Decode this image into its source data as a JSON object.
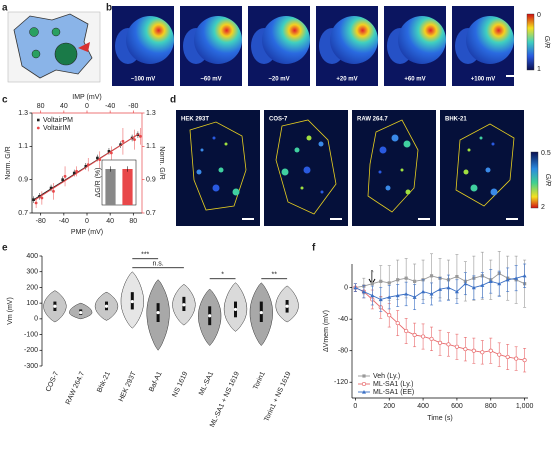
{
  "panel_labels": [
    "a",
    "b",
    "c",
    "d",
    "e",
    "f"
  ],
  "panel_b": {
    "labels": [
      "−100 mV",
      "−60 mV",
      "−20 mV",
      "+20 mV",
      "+60 mV",
      "+100 mV"
    ],
    "colorbar": {
      "title": "G/R",
      "ticks": [
        "0",
        "1"
      ]
    }
  },
  "panel_d": {
    "labels": [
      "HEK 293T",
      "COS-7",
      "RAW 264.7",
      "BHK-21"
    ],
    "colorbar": {
      "title": "G/R",
      "ticks": [
        "0.5",
        "2"
      ]
    }
  },
  "chart_data": [
    {
      "type": "scatter",
      "xlabel": "PMP (mV)",
      "x2label": "IMP (mV)",
      "ylabel": "Norm. G/R",
      "y2label": "Norm. G/R",
      "xlim": [
        -95,
        95
      ],
      "xticks": [
        -80,
        -40,
        0,
        40,
        80
      ],
      "x2lim": [
        95,
        -95
      ],
      "x2ticks": [
        80,
        40,
        0,
        -40,
        -80
      ],
      "ylim": [
        0.7,
        1.3
      ],
      "yticks": [
        0.7,
        0.9,
        1.1,
        1.3
      ],
      "y2lim": [
        0.7,
        1.3
      ],
      "y2ticks": [
        0.7,
        0.9,
        1.1,
        1.3
      ],
      "x": [
        -90,
        -80,
        -60,
        -40,
        -20,
        0,
        20,
        40,
        60,
        80,
        90
      ],
      "series": [
        {
          "name": "VoltairPM",
          "color": "#222222",
          "values": [
            0.78,
            0.8,
            0.85,
            0.9,
            0.94,
            0.98,
            1.03,
            1.07,
            1.11,
            1.15,
            1.17
          ],
          "errors": [
            0.02,
            0.02,
            0.02,
            0.02,
            0.02,
            0.02,
            0.02,
            0.02,
            0.02,
            0.02,
            0.02
          ]
        },
        {
          "name": "VoltairIM",
          "color": "#e8484a",
          "values": [
            0.76,
            0.79,
            0.83,
            0.92,
            0.95,
            0.99,
            1.02,
            1.06,
            1.13,
            1.14,
            1.16
          ],
          "errors": [
            0.03,
            0.04,
            0.05,
            0.06,
            0.03,
            0.04,
            0.05,
            0.04,
            0.08,
            0.06,
            0.05
          ]
        }
      ]
    },
    {
      "type": "bar",
      "ylabel": "ΔG/R (%)",
      "ylim": [
        0,
        25
      ],
      "values": [
        20,
        20
      ],
      "errors": [
        1.5,
        1.5
      ],
      "colors": [
        "#888888",
        "#e8484a"
      ]
    },
    {
      "type": "violin",
      "ylabel": "Vm (mV)",
      "ylim": [
        -300,
        400
      ],
      "yticks": [
        -300,
        -200,
        -100,
        0,
        100,
        200,
        300,
        400
      ],
      "categories": [
        "COS-7",
        "RAW 264.7",
        "Bhk-21",
        "HEK 293T",
        "Baf-A1",
        "NS 1619",
        "ML-SA1",
        "ML-SA1 + NS 1619",
        "Torin1",
        "Torin1 + NS 1619"
      ],
      "colors": [
        "#c8c8c8",
        "#b0b0b0",
        "#c8c8c8",
        "#e6e6e6",
        "#a8a8a8",
        "#dadada",
        "#a8a8a8",
        "#dadada",
        "#a8a8a8",
        "#dadada"
      ],
      "median": [
        80,
        40,
        80,
        110,
        40,
        90,
        20,
        60,
        40,
        80
      ],
      "q1": [
        50,
        25,
        55,
        60,
        -20,
        50,
        -40,
        10,
        -20,
        40
      ],
      "q3": [
        110,
        60,
        110,
        170,
        100,
        140,
        80,
        110,
        110,
        120
      ],
      "min": [
        -20,
        0,
        -10,
        -60,
        -200,
        -40,
        -170,
        -80,
        -170,
        -20
      ],
      "max": [
        180,
        100,
        170,
        300,
        250,
        220,
        190,
        230,
        230,
        210
      ],
      "annotations": [
        {
          "text": "***",
          "categories": [
            "HEK 293T",
            "Baf-A1"
          ]
        },
        {
          "text": "n.s.",
          "categories": [
            "HEK 293T",
            "NS 1619"
          ]
        },
        {
          "text": "*",
          "categories": [
            "ML-SA1",
            "ML-SA1 + NS 1619"
          ]
        },
        {
          "text": "**",
          "categories": [
            "Torin1",
            "Torin1 + NS 1619"
          ]
        }
      ]
    },
    {
      "type": "line",
      "xlabel": "Time (s)",
      "ylabel": "ΔVmem (mV)",
      "xlim": [
        -20,
        1020
      ],
      "xticks": [
        0,
        200,
        400,
        600,
        800,
        {
          "value": 1000,
          "label": "1,000"
        }
      ],
      "ylim": [
        -140,
        30
      ],
      "yticks": [
        -120,
        -80,
        -40,
        0
      ],
      "x": [
        0,
        50,
        100,
        150,
        200,
        250,
        300,
        350,
        400,
        450,
        500,
        550,
        600,
        650,
        700,
        750,
        800,
        850,
        900,
        950,
        1000
      ],
      "series": [
        {
          "name": "Veh (Ly.)",
          "color": "#999999",
          "values": [
            0,
            2,
            5,
            8,
            6,
            10,
            12,
            8,
            10,
            15,
            12,
            10,
            14,
            8,
            12,
            15,
            10,
            18,
            12,
            10,
            5
          ],
          "errors": [
            5,
            10,
            15,
            20,
            22,
            25,
            25,
            22,
            25,
            28,
            25,
            25,
            28,
            25,
            28,
            30,
            25,
            28,
            28,
            30,
            30
          ]
        },
        {
          "name": "ML-SA1 (Ly.)",
          "color": "#e8696b",
          "values": [
            0,
            -5,
            -15,
            -25,
            -35,
            -45,
            -55,
            -60,
            -62,
            -65,
            -70,
            -72,
            -75,
            -78,
            -80,
            -82,
            -80,
            -85,
            -88,
            -90,
            -92
          ],
          "errors": [
            5,
            8,
            12,
            14,
            15,
            16,
            16,
            15,
            16,
            15,
            16,
            15,
            16,
            15,
            16,
            15,
            16,
            15,
            16,
            15,
            15
          ]
        },
        {
          "name": "ML-SA1 (EE)",
          "color": "#3a6fc4",
          "values": [
            0,
            -5,
            -10,
            -15,
            -12,
            -10,
            -8,
            -12,
            -5,
            -8,
            -2,
            0,
            -5,
            5,
            0,
            3,
            8,
            5,
            10,
            12,
            15
          ],
          "errors": [
            5,
            8,
            12,
            15,
            15,
            14,
            15,
            16,
            15,
            14,
            15,
            16,
            15,
            14,
            15,
            16,
            15,
            16,
            15,
            16,
            15
          ]
        }
      ]
    }
  ]
}
